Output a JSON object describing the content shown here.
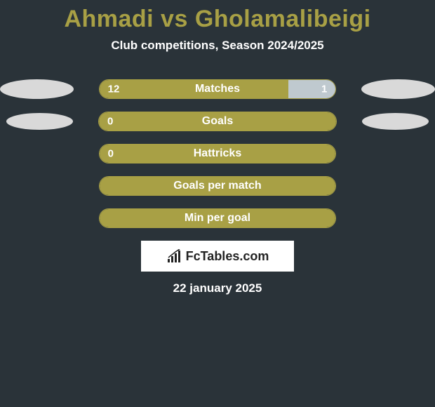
{
  "title": "Ahmadi vs Gholamalibeigi",
  "subtitle": "Club competitions, Season 2024/2025",
  "colors": {
    "background": "#2a3339",
    "accent": "#a8a045",
    "bar_right": "#bfc9cf",
    "oval": "#d9d9d9",
    "text": "#ffffff"
  },
  "rows": [
    {
      "label": "Matches",
      "left_value": "12",
      "right_value": "1",
      "left_pct": 80,
      "show_right_fill": true,
      "show_ovals": true,
      "oval_small": false
    },
    {
      "label": "Goals",
      "left_value": "0",
      "right_value": "",
      "left_pct": 100,
      "show_right_fill": false,
      "show_ovals": true,
      "oval_small": true
    },
    {
      "label": "Hattricks",
      "left_value": "0",
      "right_value": "",
      "left_pct": 100,
      "show_right_fill": false,
      "show_ovals": false
    },
    {
      "label": "Goals per match",
      "left_value": "",
      "right_value": "",
      "left_pct": 100,
      "show_right_fill": false,
      "show_ovals": false
    },
    {
      "label": "Min per goal",
      "left_value": "",
      "right_value": "",
      "left_pct": 100,
      "show_right_fill": false,
      "show_ovals": false
    }
  ],
  "logo": {
    "text": "FcTables.com"
  },
  "date": "22 january 2025"
}
